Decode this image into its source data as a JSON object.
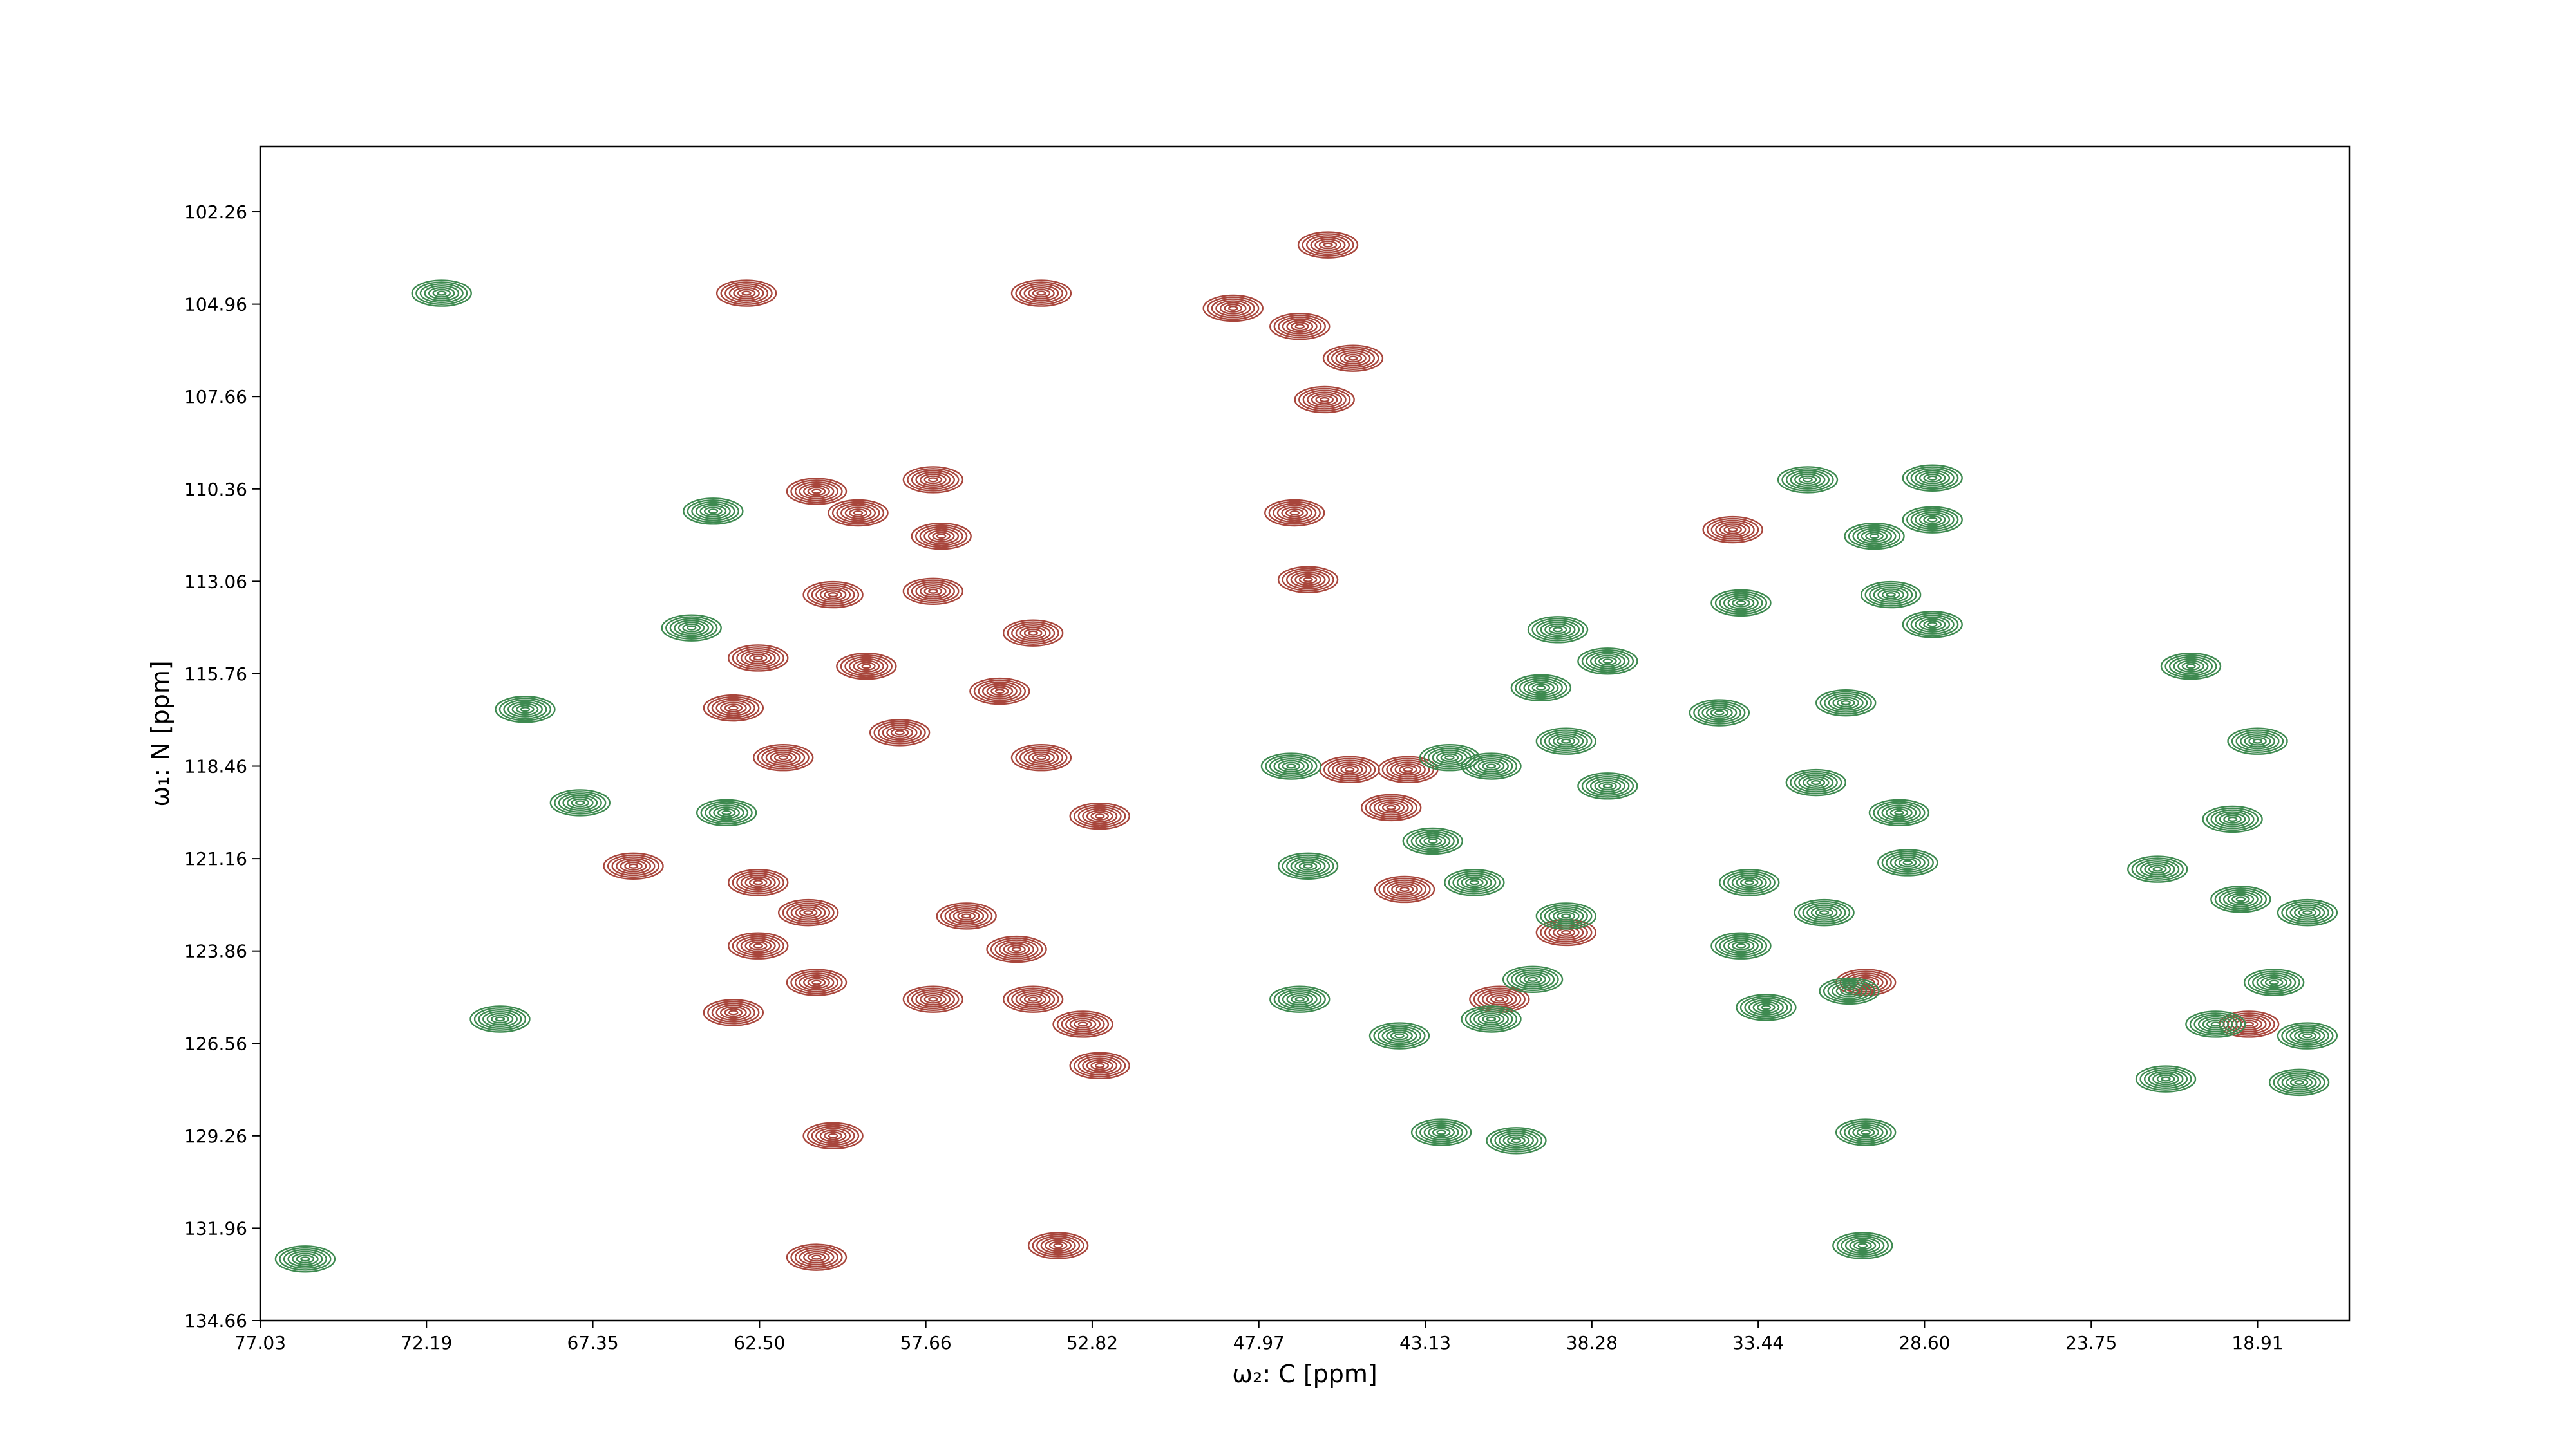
{
  "chart_data": {
    "type": "contour",
    "x_label": "ω₂: C [ppm]",
    "y_label": "ω₁: N [ppm]",
    "xlim": [
      77.03,
      16.24
    ],
    "ylim": [
      134.66,
      100.36
    ],
    "xticks": [
      77.03,
      72.19,
      67.35,
      {
        "value": 62.5,
        "label": "62.50"
      },
      57.66,
      52.82,
      47.97,
      43.13,
      38.28,
      33.44,
      {
        "value": 28.6,
        "label": "28.60"
      },
      23.75,
      18.91
    ],
    "yticks": [
      102.26,
      104.96,
      107.66,
      110.36,
      113.06,
      115.76,
      118.46,
      121.16,
      123.86,
      126.56,
      129.26,
      131.96,
      134.66
    ],
    "series": [
      {
        "color": "#a8463c",
        "x": [
          62.88,
          54.3,
          45.96,
          48.72,
          46.78,
          45.23,
          46.06,
          60.84,
          59.63,
          57.45,
          57.21,
          46.93,
          46.54,
          60.36,
          57.45,
          54.54,
          62.54,
          59.39,
          63.26,
          55.51,
          61.81,
          58.42,
          54.3,
          52.6,
          45.33,
          43.63,
          44.12,
          62.54,
          61.08,
          66.17,
          56.48,
          55.02,
          62.54,
          60.84,
          63.26,
          57.45,
          54.54,
          53.09,
          52.6,
          60.36,
          60.84,
          53.81,
          34.18,
          43.73,
          39.03,
          19.16,
          30.31,
          40.97
        ],
        "y": [
          104.64,
          104.64,
          103.23,
          105.08,
          105.61,
          106.54,
          107.75,
          110.43,
          111.06,
          110.09,
          111.74,
          111.06,
          113.01,
          113.45,
          113.35,
          114.57,
          115.3,
          115.54,
          116.76,
          116.27,
          118.21,
          117.48,
          118.21,
          119.92,
          118.56,
          118.56,
          119.67,
          121.86,
          122.74,
          121.38,
          122.84,
          123.81,
          123.71,
          124.78,
          125.66,
          125.27,
          125.27,
          126.0,
          127.21,
          129.26,
          132.81,
          132.47,
          111.55,
          122.06,
          123.32,
          126.0,
          124.78,
          125.27
        ]
      },
      {
        "color": "#3e8a50",
        "x": [
          71.75,
          63.85,
          64.48,
          69.32,
          67.72,
          63.46,
          32.0,
          28.37,
          30.06,
          28.37,
          29.58,
          33.94,
          39.27,
          28.37,
          37.82,
          39.76,
          30.89,
          34.57,
          42.42,
          41.21,
          39.03,
          37.82,
          42.91,
          41.7,
          47.03,
          46.54,
          46.78,
          39.03,
          33.7,
          31.52,
          29.09,
          31.76,
          29.34,
          33.94,
          33.21,
          30.79,
          18.91,
          19.64,
          21.82,
          19.4,
          17.46,
          18.43,
          20.13,
          17.46,
          21.58,
          17.7,
          40.0,
          41.21,
          43.88,
          40.48,
          42.66,
          30.31,
          20.85,
          70.05,
          75.72,
          30.4
        ],
        "y": [
          104.64,
          111.01,
          114.42,
          116.8,
          119.53,
          119.82,
          110.09,
          110.04,
          111.74,
          111.26,
          113.45,
          113.69,
          114.47,
          114.32,
          115.39,
          116.17,
          116.61,
          116.9,
          118.21,
          118.46,
          117.73,
          119.04,
          120.65,
          121.86,
          118.46,
          121.38,
          125.27,
          122.84,
          121.86,
          122.74,
          121.28,
          118.94,
          119.82,
          123.71,
          125.51,
          125.03,
          117.73,
          120.01,
          121.47,
          122.35,
          122.74,
          124.78,
          126.0,
          126.34,
          127.6,
          127.7,
          124.69,
          125.85,
          126.34,
          129.4,
          129.16,
          129.16,
          115.54,
          125.85,
          132.86,
          132.47
        ]
      }
    ]
  }
}
